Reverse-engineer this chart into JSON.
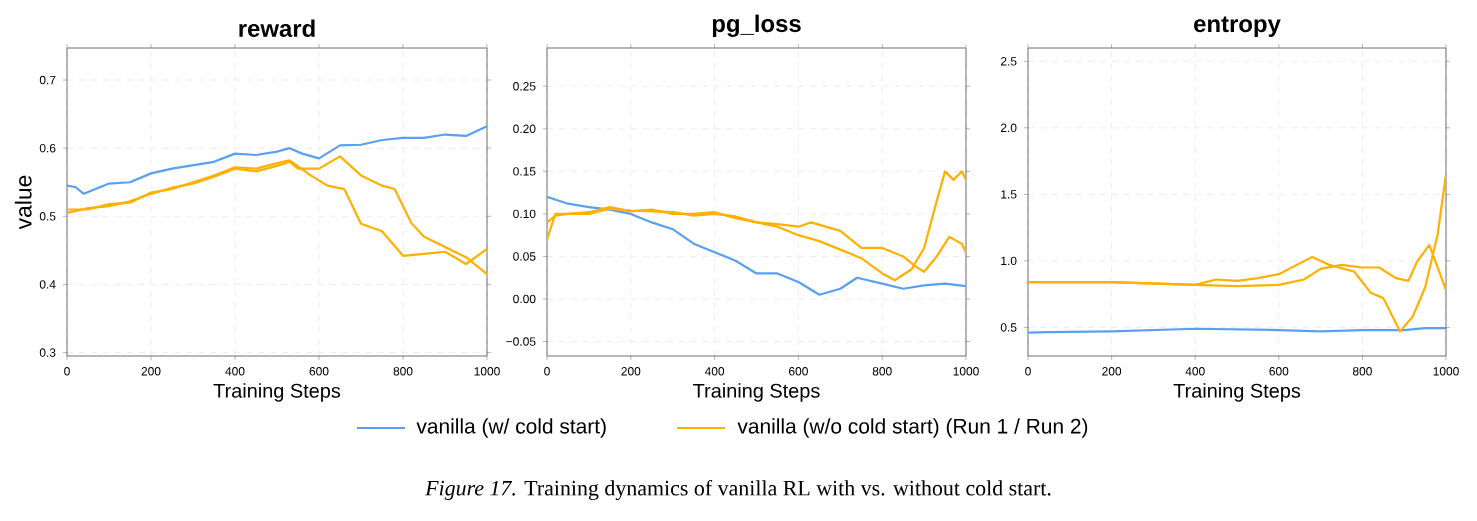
{
  "chart_data": [
    {
      "type": "line",
      "title": "reward",
      "xlabel": "Training Steps",
      "ylabel": "value",
      "xlim": [
        0,
        1000
      ],
      "ylim": [
        0.295,
        0.747
      ],
      "xticks": [
        0,
        200,
        400,
        600,
        800,
        1000
      ],
      "yticks": [
        0.3,
        0.4,
        0.5,
        0.6,
        0.7
      ],
      "grid": true,
      "line_style": "solid",
      "annotations": [
        "*Figure 17.* Training dynamics of vanilla RL with vs. without cold start."
      ],
      "series": [
        {
          "color": "#5aa0f2",
          "x": [
            0,
            20,
            40,
            100,
            150,
            200,
            250,
            300,
            350,
            400,
            450,
            500,
            530,
            560,
            600,
            650,
            700,
            750,
            800,
            850,
            900,
            950,
            1000
          ],
          "values": [
            0.545,
            0.543,
            0.533,
            0.548,
            0.55,
            0.563,
            0.57,
            0.575,
            0.58,
            0.592,
            0.59,
            0.595,
            0.6,
            0.592,
            0.585,
            0.604,
            0.605,
            0.612,
            0.615,
            0.615,
            0.62,
            0.618,
            0.632
          ]
        },
        {
          "color": "#ffb000",
          "x": [
            0,
            50,
            100,
            150,
            200,
            250,
            300,
            350,
            400,
            450,
            500,
            530,
            580,
            620,
            660,
            700,
            750,
            800,
            850,
            900,
            950,
            1000
          ],
          "values": [
            0.51,
            0.51,
            0.518,
            0.52,
            0.535,
            0.54,
            0.55,
            0.56,
            0.572,
            0.57,
            0.578,
            0.582,
            0.56,
            0.545,
            0.54,
            0.489,
            0.478,
            0.442,
            0.445,
            0.448,
            0.43,
            0.452
          ]
        },
        {
          "color": "#ffb000",
          "x": [
            0,
            50,
            100,
            150,
            200,
            250,
            300,
            350,
            400,
            450,
            500,
            530,
            550,
            600,
            650,
            700,
            750,
            780,
            820,
            850,
            900,
            950,
            1000
          ],
          "values": [
            0.505,
            0.512,
            0.515,
            0.522,
            0.533,
            0.542,
            0.548,
            0.558,
            0.57,
            0.566,
            0.574,
            0.58,
            0.57,
            0.57,
            0.588,
            0.56,
            0.545,
            0.54,
            0.49,
            0.47,
            0.455,
            0.44,
            0.415
          ]
        }
      ]
    },
    {
      "type": "line",
      "title": "pg_loss",
      "xlabel": "Training Steps",
      "xlim": [
        0,
        1000
      ],
      "ylim": [
        -0.067,
        0.295
      ],
      "xticks": [
        0,
        200,
        400,
        600,
        800,
        1000
      ],
      "yticks": [
        {
          "value": -0.05,
          "label": "−0.05"
        },
        {
          "value": 0,
          "label": "0.00"
        },
        {
          "value": 0.05,
          "label": "0.05"
        },
        {
          "value": 0.1,
          "label": "0.10"
        },
        {
          "value": 0.15,
          "label": "0.15"
        },
        {
          "value": 0.2,
          "label": "0.20"
        },
        {
          "value": 0.25,
          "label": "0.25"
        }
      ],
      "grid": true,
      "legend": "bottom",
      "line_style": "solid",
      "series": [
        {
          "name": "vanilla (w/ cold start)",
          "color": "#5aa0f2",
          "x": [
            0,
            50,
            100,
            150,
            200,
            250,
            300,
            350,
            400,
            450,
            500,
            550,
            600,
            650,
            700,
            740,
            800,
            850,
            900,
            950,
            1000
          ],
          "values": [
            0.12,
            0.112,
            0.108,
            0.105,
            0.1,
            0.09,
            0.082,
            0.065,
            0.055,
            0.045,
            0.03,
            0.03,
            0.02,
            0.005,
            0.012,
            0.025,
            0.018,
            0.012,
            0.016,
            0.018,
            0.015
          ]
        },
        {
          "name": "vanilla (w/o cold start) (Run 1 / Run 2)",
          "color": "#ffb000",
          "x": [
            0,
            20,
            50,
            100,
            150,
            200,
            250,
            300,
            350,
            400,
            450,
            500,
            550,
            600,
            650,
            700,
            750,
            800,
            830,
            870,
            900,
            930,
            950,
            970,
            990,
            1000
          ],
          "values": [
            0.07,
            0.1,
            0.1,
            0.102,
            0.108,
            0.103,
            0.105,
            0.1,
            0.1,
            0.102,
            0.095,
            0.09,
            0.085,
            0.075,
            0.068,
            0.058,
            0.048,
            0.03,
            0.022,
            0.035,
            0.06,
            0.115,
            0.15,
            0.14,
            0.15,
            0.14
          ]
        },
        {
          "color": "#ffb000",
          "x": [
            0,
            20,
            50,
            100,
            150,
            200,
            250,
            300,
            350,
            400,
            450,
            500,
            550,
            600,
            630,
            700,
            750,
            800,
            850,
            880,
            900,
            930,
            960,
            990,
            1000
          ],
          "values": [
            0.09,
            0.098,
            0.1,
            0.1,
            0.106,
            0.104,
            0.103,
            0.102,
            0.098,
            0.1,
            0.097,
            0.09,
            0.088,
            0.085,
            0.09,
            0.08,
            0.06,
            0.06,
            0.05,
            0.038,
            0.032,
            0.05,
            0.073,
            0.065,
            0.055
          ]
        }
      ]
    },
    {
      "type": "line",
      "title": "entropy",
      "xlabel": "Training Steps",
      "xlim": [
        0,
        1000
      ],
      "ylim": [
        0.285,
        2.6
      ],
      "xticks": [
        0,
        200,
        400,
        600,
        800,
        1000
      ],
      "yticks": [
        {
          "value": 0.5,
          "label": "0.5"
        },
        {
          "value": 1,
          "label": "1.0"
        },
        {
          "value": 1.5,
          "label": "1.5"
        },
        {
          "value": 2,
          "label": "2.0"
        },
        {
          "value": 2.5,
          "label": "2.5"
        }
      ],
      "grid": true,
      "line_style": "solid",
      "series": [
        {
          "color": "#5aa0f2",
          "x": [
            0,
            50,
            200,
            400,
            600,
            700,
            800,
            900,
            950,
            1000
          ],
          "values": [
            0.46,
            0.465,
            0.47,
            0.49,
            0.48,
            0.47,
            0.48,
            0.48,
            0.495,
            0.495
          ]
        },
        {
          "color": "#ffb000",
          "x": [
            0,
            200,
            400,
            450,
            500,
            550,
            600,
            680,
            720,
            780,
            820,
            850,
            890,
            920,
            950,
            980,
            1000
          ],
          "values": [
            0.84,
            0.84,
            0.82,
            0.86,
            0.85,
            0.87,
            0.9,
            1.03,
            0.97,
            0.92,
            0.76,
            0.72,
            0.47,
            0.58,
            0.8,
            1.2,
            1.65
          ]
        },
        {
          "color": "#ffb000",
          "x": [
            0,
            200,
            400,
            500,
            600,
            660,
            700,
            750,
            800,
            840,
            880,
            910,
            930,
            960,
            980,
            1000
          ],
          "values": [
            0.84,
            0.84,
            0.82,
            0.81,
            0.82,
            0.86,
            0.94,
            0.97,
            0.95,
            0.95,
            0.87,
            0.85,
            0.99,
            1.12,
            0.95,
            0.78
          ]
        }
      ]
    }
  ]
}
